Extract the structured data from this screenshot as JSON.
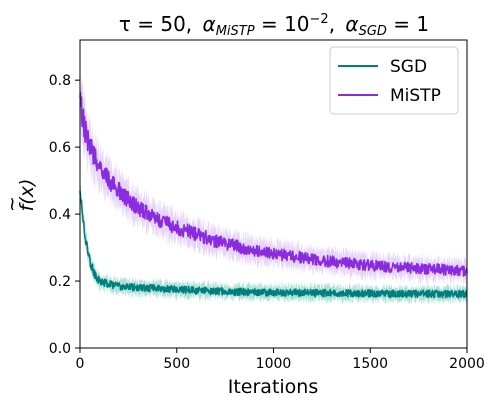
{
  "chart_data": {
    "type": "line",
    "title": "τ = 50, α_MiSTP = 10^−2, α_SGD = 1",
    "title_parts": {
      "tau": "τ = 50,",
      "alpha_mistp_symbol": "α",
      "alpha_mistp_sub": "MiSTP",
      "alpha_mistp_value": " = 10",
      "alpha_mistp_exp": "−2",
      "comma": ",",
      "alpha_sgd_symbol": "α",
      "alpha_sgd_sub": "SGD",
      "alpha_sgd_value": " = 1"
    },
    "xlabel": "Iterations",
    "ylabel": "f(x)",
    "ylabel_accent": "~",
    "xlim": [
      0,
      2000
    ],
    "ylim": [
      0.0,
      0.92
    ],
    "xticks": [
      0,
      500,
      1000,
      1500,
      2000
    ],
    "xtick_labels": [
      "0",
      "500",
      "1000",
      "1500",
      "2000"
    ],
    "yticks": [
      0.0,
      0.2,
      0.4,
      0.6,
      0.8
    ],
    "ytick_labels": [
      "0.0",
      "0.2",
      "0.4",
      "0.6",
      "0.8"
    ],
    "grid": false,
    "legend_position": "top-right",
    "series": [
      {
        "name": "SGD",
        "color": "#007f7f",
        "band_color": "#8fd6c9",
        "x": [
          0,
          25,
          50,
          75,
          100,
          150,
          200,
          300,
          400,
          500,
          600,
          700,
          800,
          900,
          1000,
          1100,
          1200,
          1300,
          1400,
          1500,
          1600,
          1700,
          1800,
          1900,
          2000
        ],
        "y": [
          0.47,
          0.34,
          0.26,
          0.22,
          0.2,
          0.19,
          0.185,
          0.18,
          0.178,
          0.175,
          0.172,
          0.17,
          0.168,
          0.167,
          0.166,
          0.165,
          0.164,
          0.164,
          0.163,
          0.163,
          0.162,
          0.162,
          0.162,
          0.161,
          0.161
        ],
        "band": [
          0.03,
          0.03,
          0.025,
          0.022,
          0.02,
          0.02,
          0.02,
          0.02,
          0.02,
          0.02,
          0.02,
          0.02,
          0.02,
          0.02,
          0.02,
          0.02,
          0.02,
          0.02,
          0.02,
          0.02,
          0.02,
          0.02,
          0.02,
          0.02,
          0.02
        ]
      },
      {
        "name": "MiSTP",
        "color": "#8a2be2",
        "band_color": "#dcc4f5",
        "x": [
          0,
          25,
          50,
          100,
          150,
          200,
          300,
          400,
          500,
          600,
          700,
          800,
          900,
          1000,
          1100,
          1200,
          1300,
          1400,
          1500,
          1600,
          1700,
          1800,
          1900,
          2000
        ],
        "y": [
          0.74,
          0.65,
          0.6,
          0.54,
          0.5,
          0.47,
          0.42,
          0.385,
          0.36,
          0.34,
          0.32,
          0.305,
          0.29,
          0.282,
          0.274,
          0.265,
          0.258,
          0.252,
          0.247,
          0.243,
          0.239,
          0.236,
          0.233,
          0.231
        ],
        "band": [
          0.08,
          0.07,
          0.065,
          0.055,
          0.05,
          0.048,
          0.045,
          0.042,
          0.04,
          0.038,
          0.036,
          0.035,
          0.034,
          0.033,
          0.032,
          0.032,
          0.031,
          0.031,
          0.03,
          0.03,
          0.03,
          0.03,
          0.03,
          0.03
        ]
      }
    ]
  }
}
